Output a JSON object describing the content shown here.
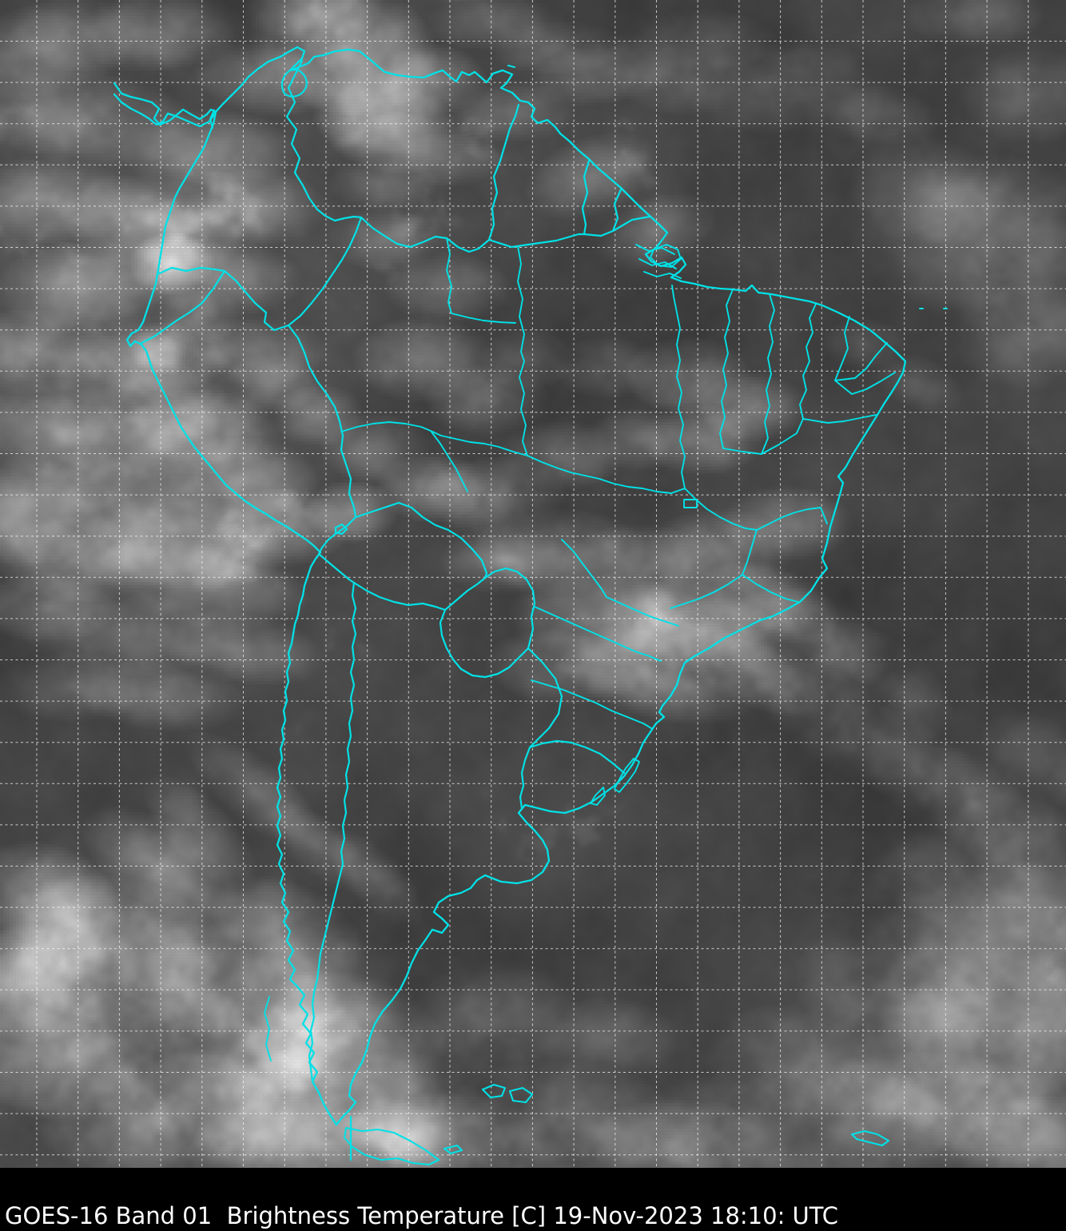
{
  "caption": {
    "text": "GOES-16 Band 01  Brightness Temperature [C] 19-Nov-2023 18:10: UTC"
  },
  "image_info": {
    "satellite": "GOES-16",
    "band": "Band 01",
    "product": "Brightness Temperature",
    "units": "[C]",
    "date": "19-Nov-2023",
    "time": "18:10",
    "timezone": "UTC"
  },
  "map": {
    "region_depicted": "South America",
    "overlays": [
      "coastlines",
      "country borders",
      "Brazil state borders",
      "latitude-longitude grid"
    ]
  },
  "colors": {
    "border_line": "#00e1e6",
    "gridline": "#ffffff",
    "ocean_dark": "#3f3f3f",
    "cloud_bright": "#e8e8e8",
    "caption_background": "#000000",
    "caption_text": "#ffffff"
  }
}
